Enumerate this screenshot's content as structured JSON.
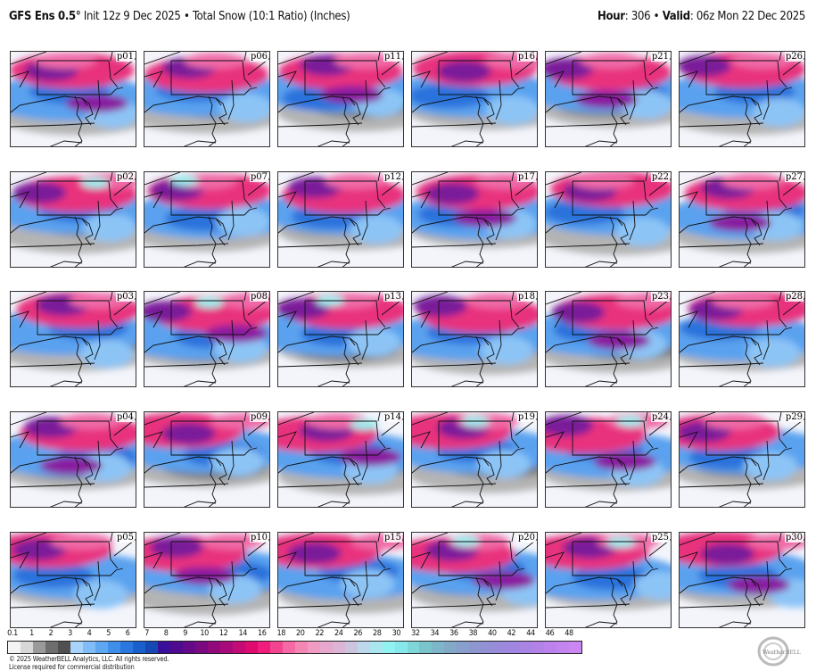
{
  "header": {
    "model": "GFS Ens 0.5",
    "degree": "°",
    "init": "Init 12z 9 Dec 2025",
    "separator": "•",
    "product": "Total Snow (10:1 Ratio) (Inches)",
    "hour_label": "Hour",
    "hour": "306",
    "valid_label": "Valid",
    "valid": "06z Mon 22 Dec 2025"
  },
  "panels": [
    [
      "p01",
      "p06",
      "p11",
      "p16",
      "p21",
      "p26"
    ],
    [
      "p02",
      "p07",
      "p12",
      "p17",
      "p22",
      "p27"
    ],
    [
      "p03",
      "p08",
      "p13",
      "p18",
      "p23",
      "p28"
    ],
    [
      "p04",
      "p09",
      "p14",
      "p19",
      "p24",
      "p29"
    ],
    [
      "p05",
      "p10",
      "p15",
      "p20",
      "p25",
      "p30"
    ]
  ],
  "colorbar": {
    "ticks": [
      "0.1",
      "1",
      "2",
      "3",
      "4",
      "5",
      "6",
      "7",
      "8",
      "9",
      "10",
      "12",
      "14",
      "16",
      "18",
      "20",
      "22",
      "24",
      "26",
      "28",
      "30",
      "32",
      "34",
      "36",
      "38",
      "40",
      "42",
      "44",
      "46",
      "48"
    ],
    "colors": [
      "#f4f4f4",
      "#d8d8d8",
      "#9a9a9a",
      "#6e6e6e",
      "#505050",
      "#a8d4fb",
      "#80bdf8",
      "#5fa6f2",
      "#3f8ee9",
      "#2a77df",
      "#1a5fce",
      "#1648b4",
      "#3a0f9a",
      "#4e0b90",
      "#640a88",
      "#7a0a80",
      "#900a7c",
      "#a80a7a",
      "#c40a74",
      "#de0a70",
      "#f01d7c",
      "#f3448f",
      "#f56aa4",
      "#f486b4",
      "#ef9bc4",
      "#e6a8cc",
      "#dcb4d6",
      "#cdc4e0",
      "#bcd8ea",
      "#a9e6f0",
      "#92f2f2",
      "#86e8ec",
      "#7fd6d8",
      "#7ac4cc",
      "#7cb6c8",
      "#82aac8",
      "#889ecc",
      "#8e96d0",
      "#9490d6",
      "#9a8adb",
      "#a086e0",
      "#a984e4",
      "#b282e8",
      "#bb82ec",
      "#c484f0",
      "#cc86f2"
    ]
  },
  "footer": {
    "copyright": "© 2025 WeatherBELL Analytics, LLC. All rights reserved.",
    "license": "License required for commercial distribution",
    "logo_text": "WeatherBELL"
  }
}
